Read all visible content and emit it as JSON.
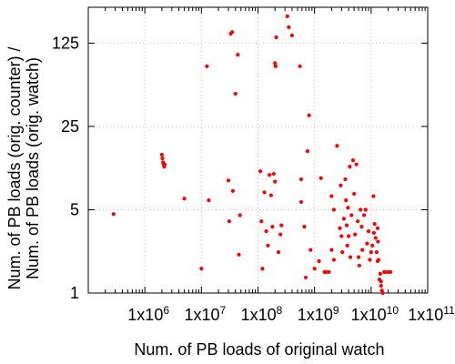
{
  "chart_data": {
    "type": "scatter",
    "title": "",
    "xlabel": "Num. of PB loads of original watch",
    "ylabel": [
      "Num. of PB loads (orig. counter) /",
      "Num. of PB loads (orig. watch)"
    ],
    "x_scale": "log",
    "y_scale": "log",
    "xlim": [
      100000,
      100000000000
    ],
    "ylim": [
      1,
      250
    ],
    "x_ticks": [
      {
        "value": 1000000,
        "mantissa": "1x10",
        "exp": "6"
      },
      {
        "value": 10000000,
        "mantissa": "1x10",
        "exp": "7"
      },
      {
        "value": 100000000,
        "mantissa": "1x10",
        "exp": "8"
      },
      {
        "value": 1000000000,
        "mantissa": "1x10",
        "exp": "9"
      },
      {
        "value": 10000000000,
        "mantissa": "1x10",
        "exp": "10"
      },
      {
        "value": 100000000000,
        "mantissa": "1x10",
        "exp": "11"
      }
    ],
    "y_ticks": [
      {
        "value": 1,
        "label": "1"
      },
      {
        "value": 5,
        "label": "5"
      },
      {
        "value": 25,
        "label": "25"
      },
      {
        "value": 125,
        "label": "125"
      }
    ],
    "grid": true,
    "legend": "none",
    "marker_color": "#ff0000",
    "points": [
      [
        280000.0,
        4.6
      ],
      [
        2000000.0,
        14.5
      ],
      [
        2050000.0,
        13.5
      ],
      [
        2100000.0,
        12.5
      ],
      [
        2150000.0,
        12.0
      ],
      [
        2200000.0,
        11.5
      ],
      [
        2250000.0,
        12.0
      ],
      [
        5000000.0,
        6.2
      ],
      [
        10000000.0,
        1.6
      ],
      [
        12500000.0,
        80
      ],
      [
        13500000.0,
        6.0
      ],
      [
        33000000.0,
        150
      ],
      [
        35000000.0,
        155
      ],
      [
        30000000.0,
        8.8
      ],
      [
        31000000.0,
        4.0
      ],
      [
        36000000.0,
        7.2
      ],
      [
        40000000.0,
        47
      ],
      [
        44000000.0,
        100
      ],
      [
        46000000.0,
        2.1
      ],
      [
        48000000.0,
        4.5
      ],
      [
        110000000.0,
        10.5
      ],
      [
        115000000.0,
        4.0
      ],
      [
        120000000.0,
        1.6
      ],
      [
        130000000.0,
        7.0
      ],
      [
        140000000.0,
        3.3
      ],
      [
        150000000.0,
        2.5
      ],
      [
        160000000.0,
        9.8
      ],
      [
        170000000.0,
        6.6
      ],
      [
        180000000.0,
        3.6
      ],
      [
        190000000.0,
        10.0
      ],
      [
        200000000.0,
        8.6
      ],
      [
        200000000.0,
        85
      ],
      [
        205000000.0,
        80
      ],
      [
        210000000.0,
        140
      ],
      [
        230000000.0,
        2.2
      ],
      [
        250000000.0,
        3.1
      ],
      [
        260000000.0,
        3.7
      ],
      [
        330000000.0,
        210
      ],
      [
        350000000.0,
        170
      ],
      [
        400000000.0,
        145
      ],
      [
        550000000.0,
        80
      ],
      [
        580000000.0,
        5.8
      ],
      [
        580000000.0,
        9.0
      ],
      [
        660000000.0,
        3.6
      ],
      [
        700000000.0,
        1.35
      ],
      [
        750000000.0,
        15.5
      ],
      [
        800000000.0,
        31
      ],
      [
        850000000.0,
        2.3
      ],
      [
        1000000000.0,
        1.6
      ],
      [
        1200000000.0,
        1.85
      ],
      [
        1300000000.0,
        9.2
      ],
      [
        1500000000.0,
        1.5
      ],
      [
        1600000000.0,
        1.5
      ],
      [
        1800000000.0,
        1.5
      ],
      [
        2000000000.0,
        2.3
      ],
      [
        2200000000.0,
        1.9
      ],
      [
        2000000000.0,
        6.5
      ],
      [
        2200000000.0,
        5.0
      ],
      [
        2500000000.0,
        17.2
      ],
      [
        2800000000.0,
        3.5
      ],
      [
        2900000000.0,
        8.0
      ],
      [
        3000000000.0,
        3.0
      ],
      [
        3100000000.0,
        2.2
      ],
      [
        3300000000.0,
        4.2
      ],
      [
        3500000000.0,
        9.0
      ],
      [
        3600000000.0,
        6.0
      ],
      [
        3700000000.0,
        3.7
      ],
      [
        3800000000.0,
        2.5
      ],
      [
        3900000000.0,
        5.2
      ],
      [
        4000000000.0,
        3.0
      ],
      [
        4200000000.0,
        11.5
      ],
      [
        4300000000.0,
        2.0
      ],
      [
        4500000000.0,
        4.5
      ],
      [
        4800000000.0,
        13.0
      ],
      [
        5000000000.0,
        6.8
      ],
      [
        5200000000.0,
        3.1
      ],
      [
        5500000000.0,
        12.0
      ],
      [
        5800000000.0,
        4.0
      ],
      [
        6000000000.0,
        2.0
      ],
      [
        6200000000.0,
        1.7
      ],
      [
        6500000000.0,
        5.0
      ],
      [
        6800000000.0,
        3.6
      ],
      [
        7000000000.0,
        2.3
      ],
      [
        7500000000.0,
        4.5
      ],
      [
        8000000000.0,
        5.0
      ],
      [
        8500000000.0,
        2.6
      ],
      [
        9000000000.0,
        3.3
      ],
      [
        9500000000.0,
        1.9
      ],
      [
        10000000000.0,
        2.2
      ],
      [
        10500000000.0,
        2.5
      ],
      [
        11000000000.0,
        6.5
      ],
      [
        11200000000.0,
        3.2
      ],
      [
        11500000000.0,
        3.8
      ],
      [
        12000000000.0,
        2.9
      ],
      [
        12500000000.0,
        2.2
      ],
      [
        13000000000.0,
        3.5
      ],
      [
        13200000000.0,
        2.7
      ],
      [
        13500000000.0,
        1.9
      ],
      [
        14000000000.0,
        1.3
      ],
      [
        14500000000.0,
        1.45
      ],
      [
        15000000000.0,
        1.15
      ],
      [
        15500000000.0,
        1.05
      ],
      [
        16000000000.0,
        1.0
      ],
      [
        17000000000.0,
        1.5
      ],
      [
        18000000000.0,
        1.5
      ],
      [
        20000000000.0,
        1.5
      ],
      [
        22000000000.0,
        1.5
      ],
      [
        13000000000.0,
        1.85
      ],
      [
        15000000000.0,
        1.25
      ]
    ]
  }
}
